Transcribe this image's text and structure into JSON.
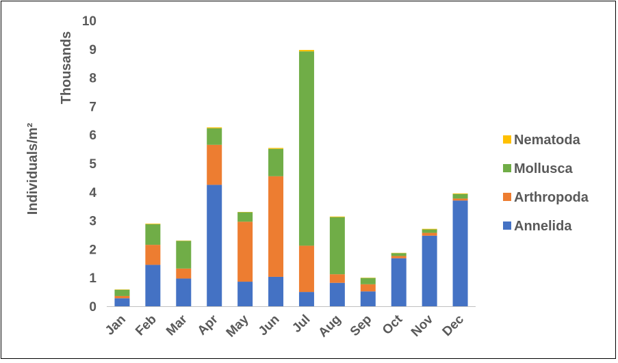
{
  "chart_data": {
    "type": "bar",
    "stacked": true,
    "categories": [
      "Jan",
      "Feb",
      "Mar",
      "Apr",
      "May",
      "Jun",
      "Jul",
      "Aug",
      "Sep",
      "Oct",
      "Nov",
      "Dec"
    ],
    "series": [
      {
        "name": "Annelida",
        "color": "#4472C4",
        "values": [
          0.28,
          1.45,
          0.97,
          4.25,
          0.86,
          1.03,
          0.5,
          0.82,
          0.52,
          1.68,
          2.47,
          3.7
        ]
      },
      {
        "name": "Arthropoda",
        "color": "#ED7D31",
        "values": [
          0.08,
          0.7,
          0.35,
          1.4,
          2.1,
          3.52,
          1.62,
          0.3,
          0.25,
          0.08,
          0.1,
          0.07
        ]
      },
      {
        "name": "Mollusca",
        "color": "#70AD47",
        "values": [
          0.22,
          0.72,
          0.97,
          0.58,
          0.33,
          0.96,
          6.8,
          2.0,
          0.22,
          0.1,
          0.12,
          0.16
        ]
      },
      {
        "name": "Nematoda",
        "color": "#FFC000",
        "values": [
          0.01,
          0.02,
          0.01,
          0.03,
          0.01,
          0.03,
          0.05,
          0.02,
          0.01,
          0.01,
          0.02,
          0.02
        ]
      }
    ],
    "ylim": [
      0,
      10
    ],
    "yticks": [
      "0",
      "1",
      "2",
      "3",
      "4",
      "5",
      "6",
      "7",
      "8",
      "9",
      "10"
    ],
    "ylabel": "Individuals/m²",
    "yunit_label": "Thousands",
    "xlabel": "",
    "title": "",
    "legend_position": "right",
    "legend_order": [
      "Nematoda",
      "Mollusca",
      "Arthropoda",
      "Annelida"
    ],
    "grid": false
  }
}
